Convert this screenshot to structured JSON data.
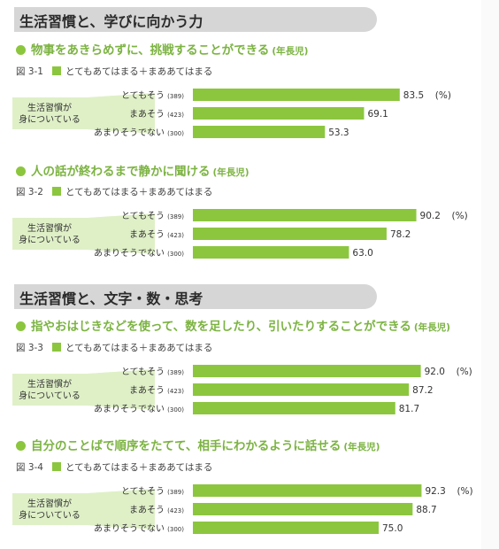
{
  "sections": [
    {
      "title": "生活習慣と、学びに向かう力"
    },
    {
      "title": "生活習慣と、文字・数・思考"
    }
  ],
  "legend_label": "とてもあてはまる＋まああてはまる",
  "callout_lines": [
    "生活習慣が",
    "身についている"
  ],
  "unit": "(%)",
  "categories": [
    "とてもそう",
    "まあそう",
    "あまりそうでない"
  ],
  "colors": {
    "bar": "#8cc63f",
    "accent_text": "#7cb342",
    "header_bg": "#d6d6d6",
    "callout": "#dff0c7"
  },
  "chart_data": [
    {
      "type": "bar",
      "fig": "図 3-1",
      "title": "物事をあきらめずに、挑戦することができる",
      "note": "(年長児)",
      "categories": [
        "とてもそう",
        "まあそう",
        "あまりそうでない"
      ],
      "n": [
        "(389)",
        "(423)",
        "(300)"
      ],
      "values": [
        83.5,
        69.1,
        53.3
      ],
      "value_labels": [
        "83.5",
        "69.1",
        "53.3"
      ],
      "xlim": [
        0,
        100
      ],
      "series": [
        {
          "name": "とてもあてはまる＋まああてはまる",
          "values": [
            83.5,
            69.1,
            53.3
          ]
        }
      ]
    },
    {
      "type": "bar",
      "fig": "図 3-2",
      "title": "人の話が終わるまで静かに聞ける",
      "note": "(年長児)",
      "categories": [
        "とてもそう",
        "まあそう",
        "あまりそうでない"
      ],
      "n": [
        "(389)",
        "(423)",
        "(300)"
      ],
      "values": [
        90.2,
        78.2,
        63.0
      ],
      "value_labels": [
        "90.2",
        "78.2",
        "63.0"
      ],
      "xlim": [
        0,
        100
      ],
      "series": [
        {
          "name": "とてもあてはまる＋まああてはまる",
          "values": [
            90.2,
            78.2,
            63.0
          ]
        }
      ]
    },
    {
      "type": "bar",
      "fig": "図 3-3",
      "title": "指やおはじきなどを使って、数を足したり、引いたりすることができる",
      "note": "(年長児)",
      "categories": [
        "とてもそう",
        "まあそう",
        "あまりそうでない"
      ],
      "n": [
        "(389)",
        "(423)",
        "(300)"
      ],
      "values": [
        92.0,
        87.2,
        81.7
      ],
      "value_labels": [
        "92.0",
        "87.2",
        "81.7"
      ],
      "xlim": [
        0,
        100
      ],
      "series": [
        {
          "name": "とてもあてはまる＋まああてはまる",
          "values": [
            92.0,
            87.2,
            81.7
          ]
        }
      ]
    },
    {
      "type": "bar",
      "fig": "図 3-4",
      "title": "自分のことばで順序をたてて、相手にわかるように話せる",
      "note": "(年長児)",
      "categories": [
        "とてもそう",
        "まあそう",
        "あまりそうでない"
      ],
      "n": [
        "(389)",
        "(423)",
        "(300)"
      ],
      "values": [
        92.3,
        88.7,
        75.0
      ],
      "value_labels": [
        "92.3",
        "88.7",
        "75.0"
      ],
      "xlim": [
        0,
        100
      ],
      "series": [
        {
          "name": "とてもあてはまる＋まああてはまる",
          "values": [
            92.3,
            88.7,
            75.0
          ]
        }
      ]
    }
  ]
}
